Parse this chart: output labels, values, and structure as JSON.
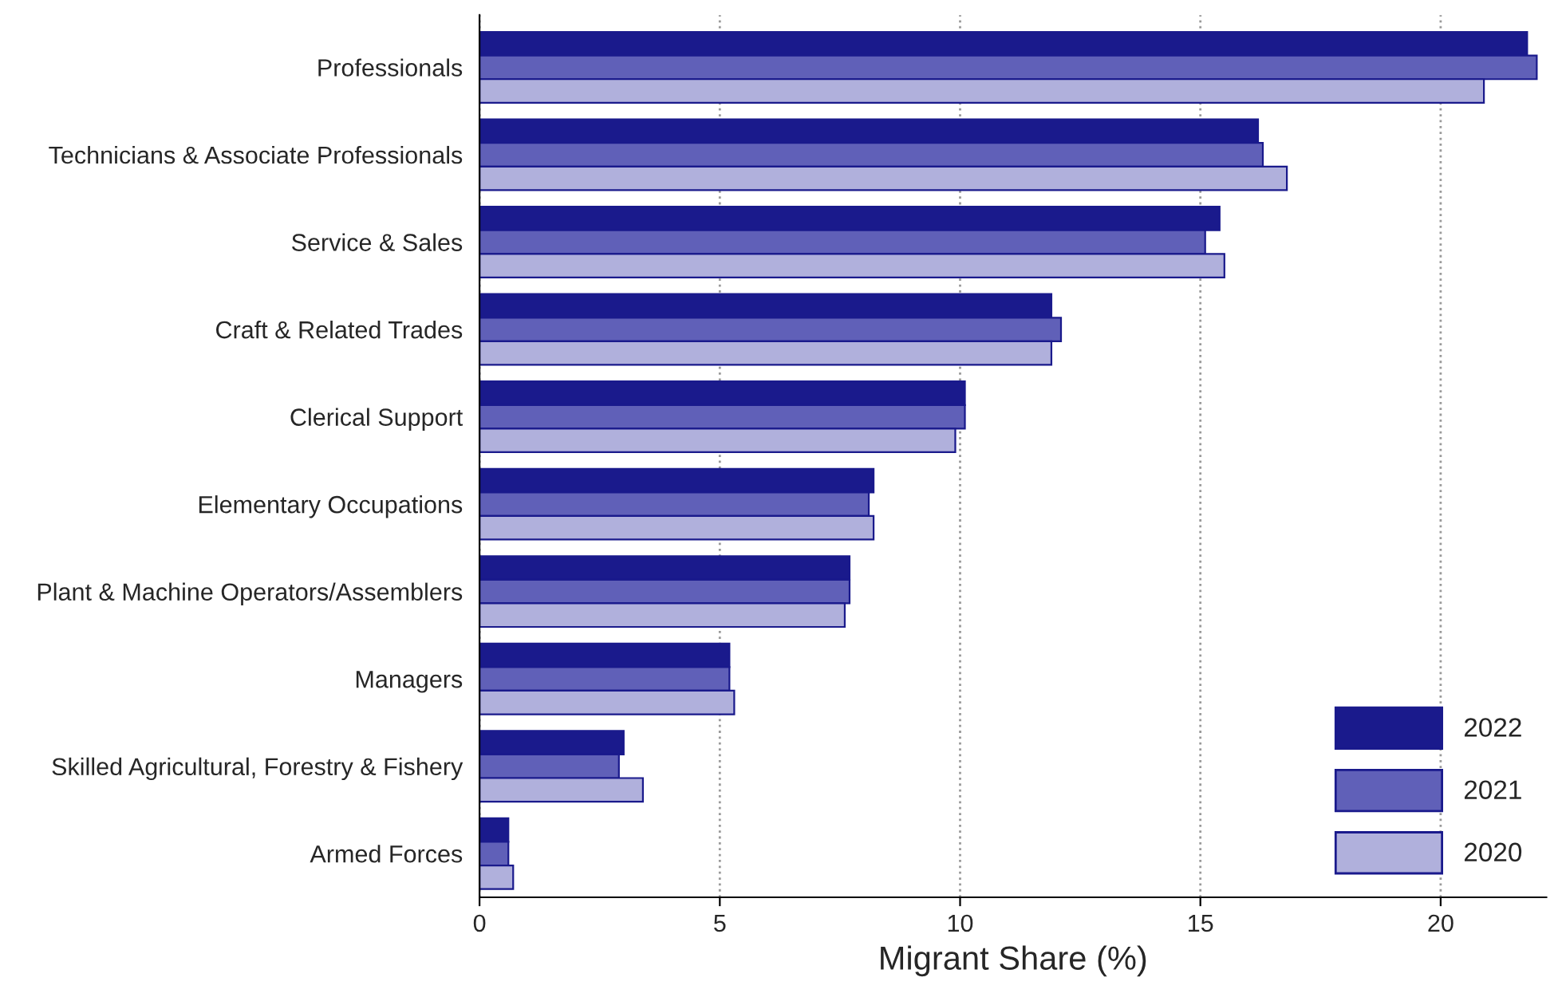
{
  "chart_data": {
    "type": "bar",
    "orientation": "horizontal",
    "xlabel": "Migrant Share (%)",
    "categories": [
      "Professionals",
      "Technicians & Associate Professionals",
      "Service & Sales",
      "Craft & Related Trades",
      "Clerical Support",
      "Elementary Occupations",
      "Plant & Machine Operators/Assemblers",
      "Managers",
      "Skilled Agricultural, Forestry & Fishery",
      "Armed Forces"
    ],
    "series": [
      {
        "name": "2022",
        "color": "#1a1a8c",
        "values": [
          21.8,
          16.2,
          15.4,
          11.9,
          10.1,
          8.2,
          7.7,
          5.2,
          3.0,
          0.6
        ]
      },
      {
        "name": "2021",
        "color": "#6060b8",
        "values": [
          22.0,
          16.3,
          15.1,
          12.1,
          10.1,
          8.1,
          7.7,
          5.2,
          2.9,
          0.6
        ]
      },
      {
        "name": "2020",
        "color": "#b0b0dc",
        "values": [
          20.9,
          16.8,
          15.5,
          11.9,
          9.9,
          8.2,
          7.6,
          5.3,
          3.4,
          0.7
        ]
      }
    ],
    "xlim": [
      0,
      22.2
    ],
    "xticks": [
      0,
      5,
      10,
      15,
      20
    ],
    "grid": "x",
    "legend": "bottom right"
  }
}
